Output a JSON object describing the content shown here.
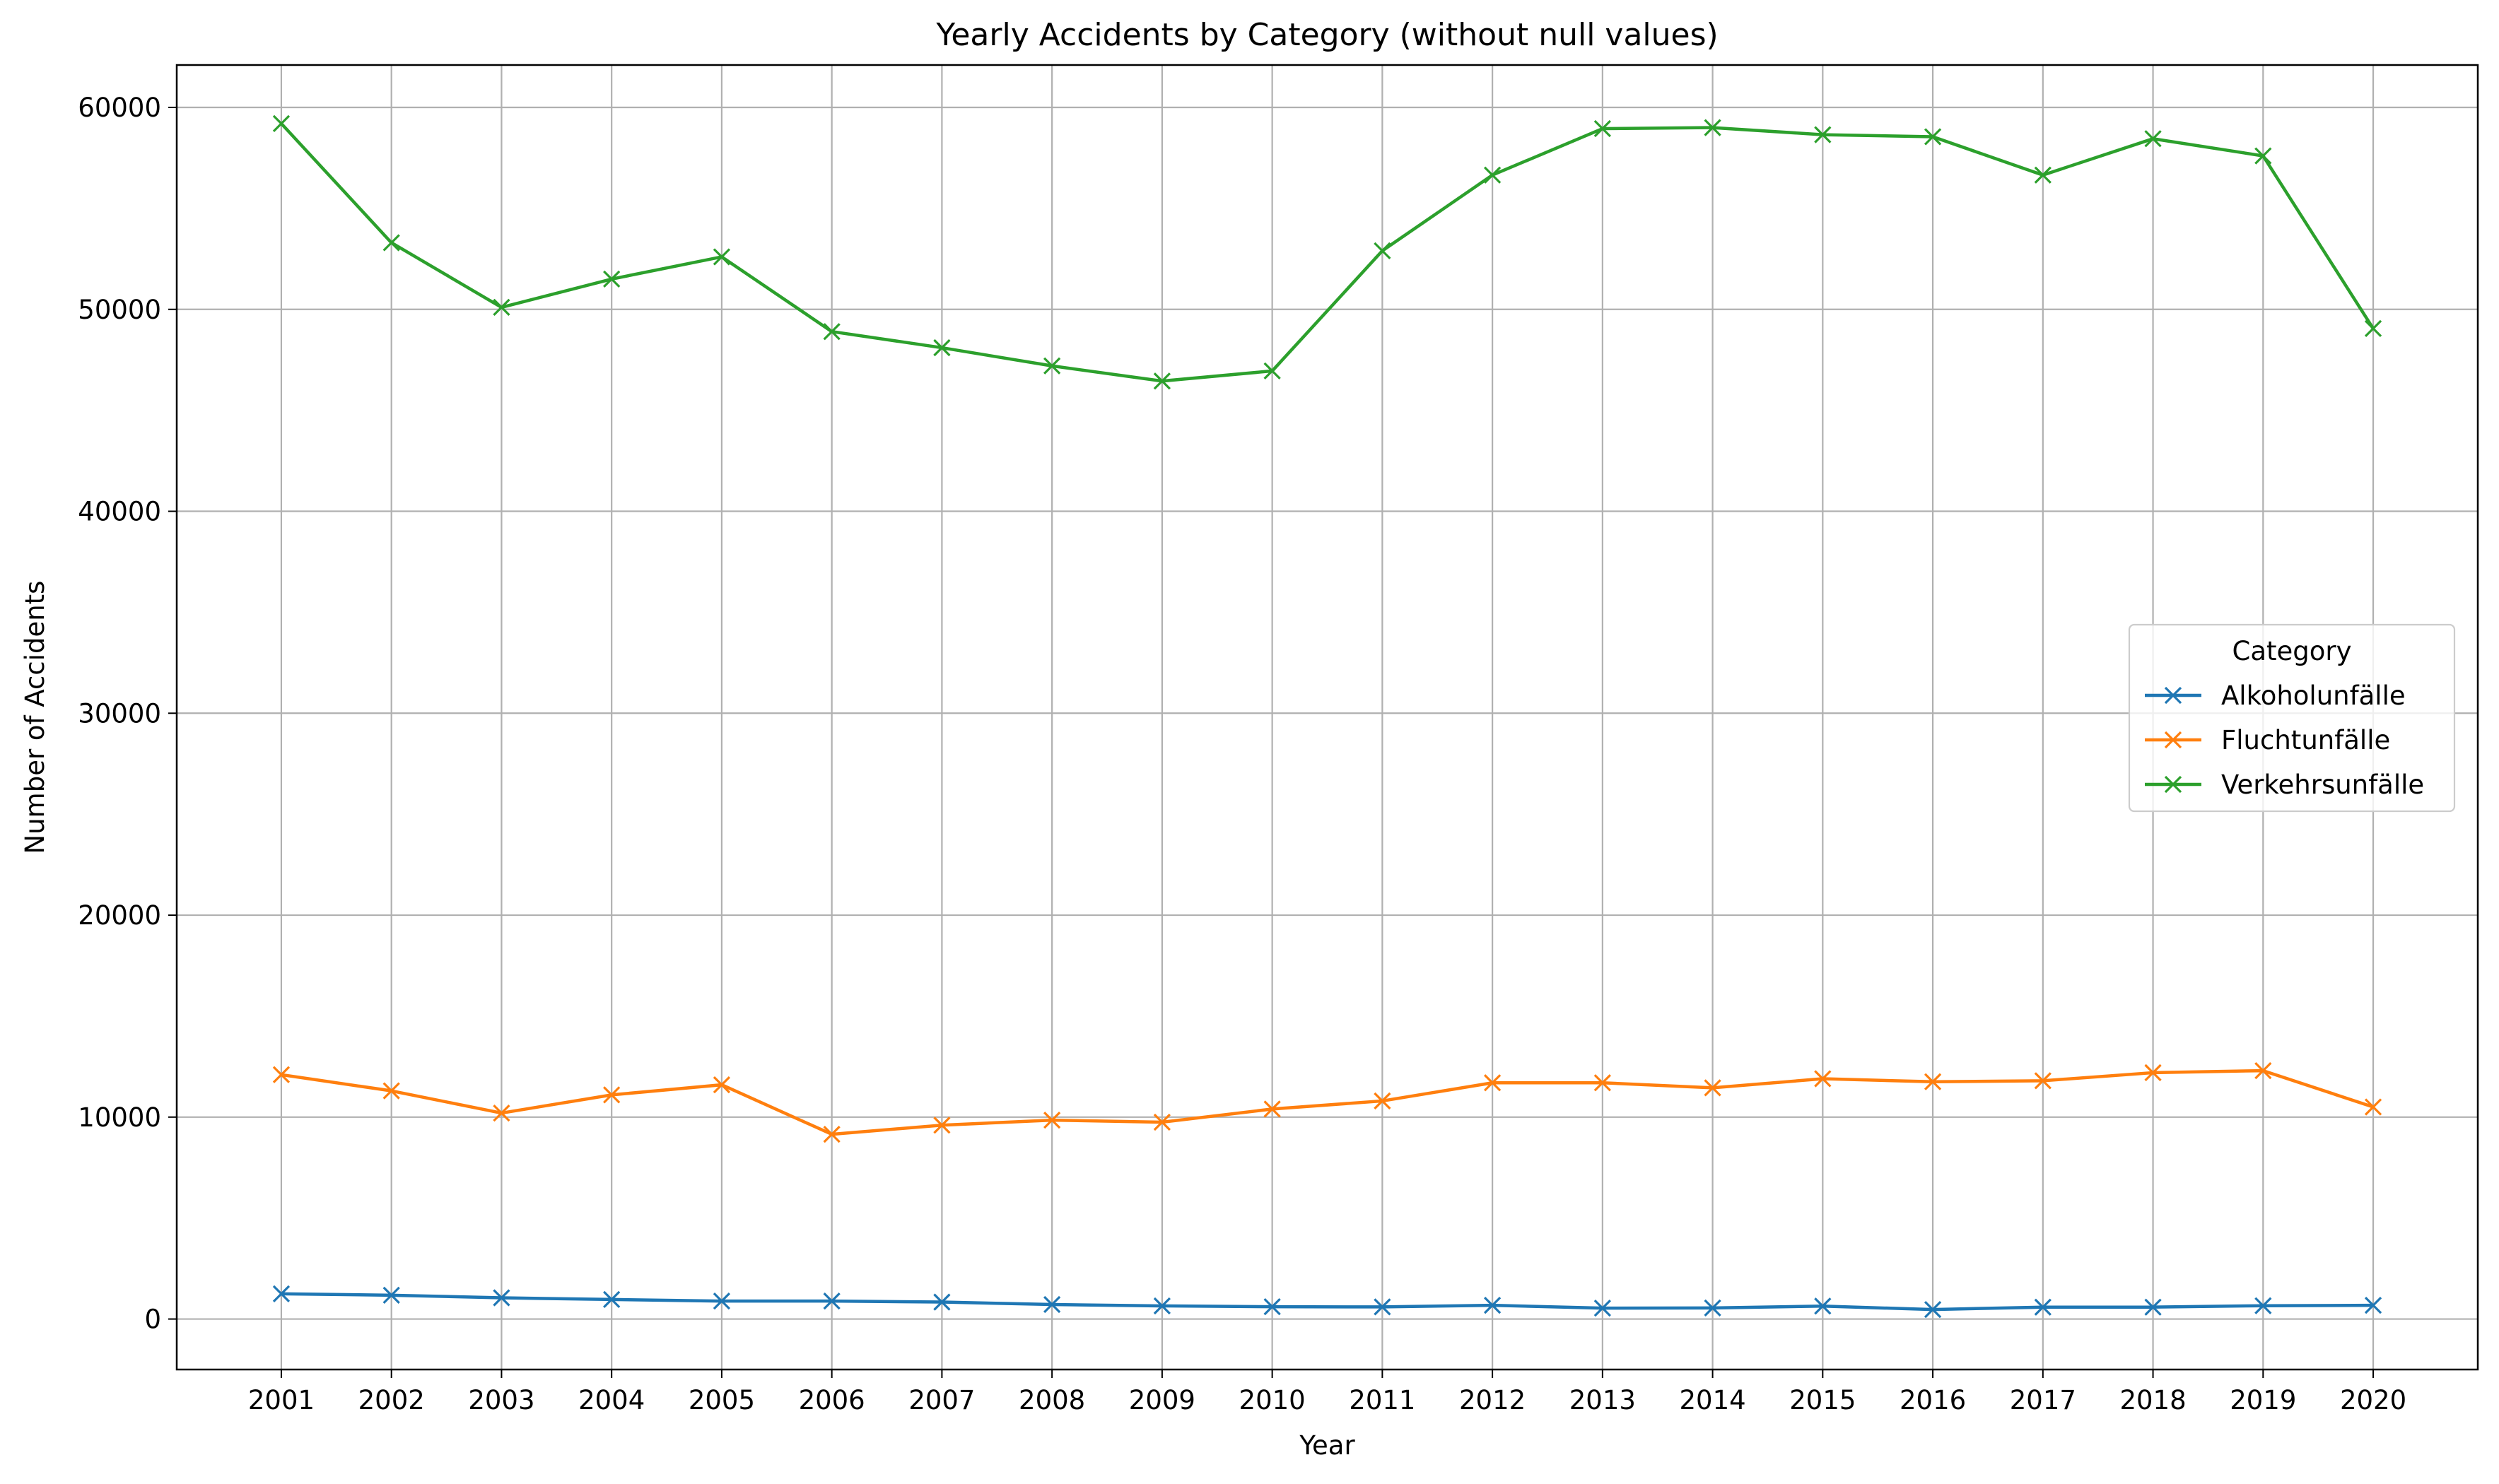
{
  "chart_data": {
    "type": "line",
    "title": "Yearly Accidents by Category (without null values)",
    "xlabel": "Year",
    "ylabel": "Number of Accidents",
    "x": [
      2001,
      2002,
      2003,
      2004,
      2005,
      2006,
      2007,
      2008,
      2009,
      2010,
      2011,
      2012,
      2013,
      2014,
      2015,
      2016,
      2017,
      2018,
      2019,
      2020
    ],
    "x_tick_labels": [
      "2001",
      "2002",
      "2003",
      "2004",
      "2005",
      "2006",
      "2007",
      "2008",
      "2009",
      "2010",
      "2011",
      "2012",
      "2013",
      "2014",
      "2015",
      "2016",
      "2017",
      "2018",
      "2019",
      "2020"
    ],
    "ylim": [
      -2500,
      62100
    ],
    "y_ticks": [
      0,
      10000,
      20000,
      30000,
      40000,
      50000,
      60000
    ],
    "y_tick_labels": [
      "0",
      "10000",
      "20000",
      "30000",
      "40000",
      "50000",
      "60000"
    ],
    "grid": true,
    "marker": "x",
    "legend": {
      "title": "Category",
      "placement": "center-right"
    },
    "series": [
      {
        "name": "Alkoholunfälle",
        "color": "#1f77b4",
        "values": [
          1250,
          1180,
          1050,
          970,
          890,
          890,
          840,
          720,
          650,
          610,
          600,
          680,
          540,
          550,
          640,
          470,
          590,
          590,
          660,
          680
        ]
      },
      {
        "name": "Fluchtunfälle",
        "color": "#ff7f0e",
        "values": [
          12100,
          11300,
          10200,
          11100,
          11600,
          9150,
          9600,
          9850,
          9750,
          10400,
          10800,
          11700,
          11700,
          11450,
          11900,
          11750,
          11800,
          12200,
          12300,
          10500
        ]
      },
      {
        "name": "Verkehrsunfälle",
        "color": "#2ca02c",
        "values": [
          59200,
          53300,
          50100,
          51500,
          52600,
          48900,
          48100,
          47200,
          46450,
          46950,
          52900,
          56650,
          58950,
          59000,
          58650,
          58550,
          56650,
          58450,
          57600,
          49050
        ]
      }
    ]
  }
}
